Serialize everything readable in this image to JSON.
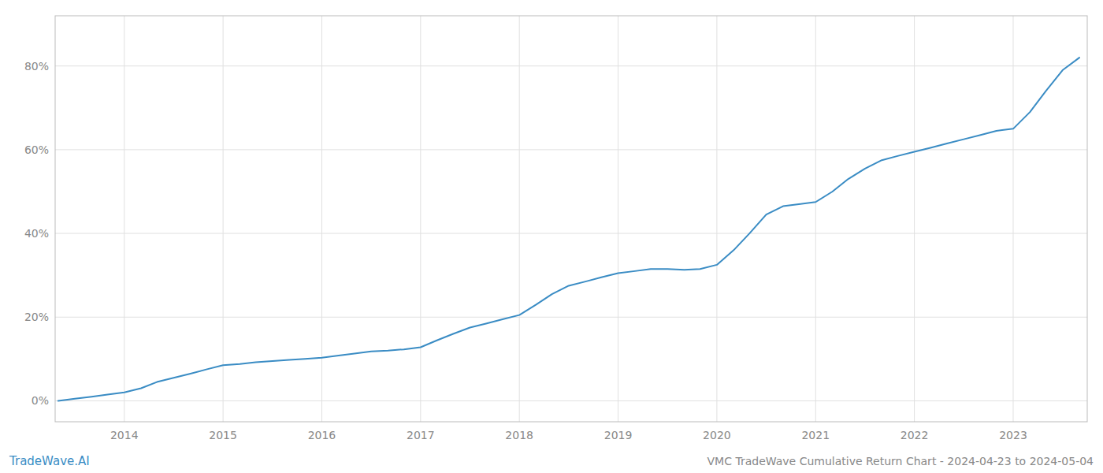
{
  "chart_data": {
    "type": "line",
    "title": "VMC TradeWave Cumulative Return Chart - 2024-04-23 to 2024-05-04",
    "annotations": [
      "TradeWave.AI"
    ],
    "color": "#3a8cc4",
    "grid": true,
    "x": [
      2013.33,
      2013.5,
      2013.67,
      2013.83,
      2014.0,
      2014.17,
      2014.33,
      2014.5,
      2014.67,
      2014.83,
      2015.0,
      2015.17,
      2015.33,
      2015.5,
      2015.67,
      2015.83,
      2016.0,
      2016.17,
      2016.33,
      2016.5,
      2016.67,
      2016.83,
      2017.0,
      2017.17,
      2017.33,
      2017.5,
      2017.67,
      2017.83,
      2018.0,
      2018.17,
      2018.33,
      2018.5,
      2018.67,
      2018.83,
      2019.0,
      2019.17,
      2019.33,
      2019.5,
      2019.67,
      2019.83,
      2020.0,
      2020.17,
      2020.33,
      2020.5,
      2020.67,
      2020.83,
      2021.0,
      2021.17,
      2021.33,
      2021.5,
      2021.67,
      2021.83,
      2022.0,
      2022.17,
      2022.33,
      2022.5,
      2022.67,
      2022.83,
      2023.0,
      2023.17,
      2023.33,
      2023.5,
      2023.67
    ],
    "values": [
      0.0,
      0.5,
      1.0,
      1.5,
      2.0,
      3.0,
      4.5,
      5.5,
      6.5,
      7.5,
      8.5,
      8.8,
      9.2,
      9.5,
      9.8,
      10.0,
      10.3,
      10.8,
      11.3,
      11.8,
      12.0,
      12.3,
      12.8,
      14.5,
      16.0,
      17.5,
      18.5,
      19.5,
      20.5,
      23.0,
      25.5,
      27.5,
      28.5,
      29.5,
      30.5,
      31.0,
      31.5,
      31.5,
      31.3,
      31.5,
      32.5,
      36.0,
      40.0,
      44.5,
      46.5,
      47.0,
      47.5,
      50.0,
      53.0,
      55.5,
      57.5,
      58.5,
      59.5,
      60.5,
      61.5,
      62.5,
      63.5,
      64.5,
      65.0,
      69.0,
      74.0,
      79.0,
      82.0
    ],
    "xlim": [
      2013.3,
      2023.75
    ],
    "ylim": [
      -5,
      92
    ],
    "xticks": [
      2014,
      2015,
      2016,
      2017,
      2018,
      2019,
      2020,
      2021,
      2022,
      2023
    ],
    "yticks": [
      {
        "value": 0,
        "label": "0%"
      },
      {
        "value": 20,
        "label": "20%"
      },
      {
        "value": 40,
        "label": "40%"
      },
      {
        "value": 60,
        "label": "60%"
      },
      {
        "value": 80,
        "label": "80%"
      }
    ]
  }
}
